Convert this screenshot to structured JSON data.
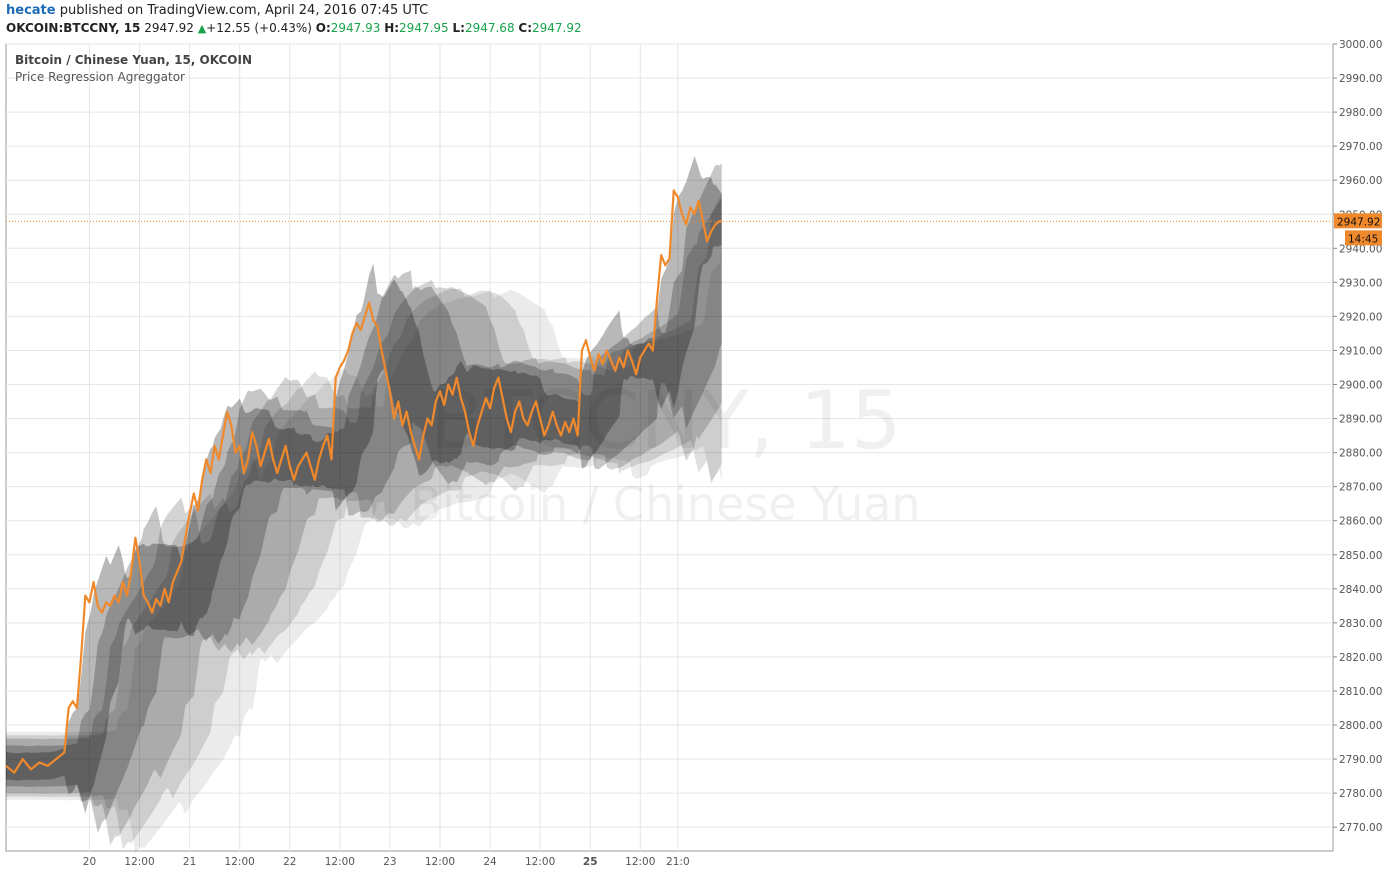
{
  "header": {
    "user": "hecate",
    "published_text": "published on TradingView.com, April 24, 2016 07:45 UTC",
    "symbol": "OKCOIN:BTCCNY, 15",
    "last": "2947.92",
    "change": "+12.55 (+0.43%)",
    "o_label": "O:",
    "o_value": "2947.93",
    "h_label": "H:",
    "h_value": "2947.95",
    "l_label": "L:",
    "l_value": "2947.68",
    "c_label": "C:",
    "c_value": "2947.92"
  },
  "overlay": {
    "title": "Bitcoin / Chinese Yuan, 15, OKCOIN",
    "indicator": "Price Regression Agreggator",
    "watermark_symbol": "BTCCNY, 15",
    "watermark_name": "Bitcoin / Chinese Yuan"
  },
  "colors": {
    "price": "#f0892c",
    "band": "#000000",
    "grid": "#e6e6e6",
    "axis": "#888888"
  },
  "chart_data": {
    "type": "line",
    "title": "Bitcoin / Chinese Yuan, 15, OKCOIN",
    "ylim": [
      2763,
      3000
    ],
    "y_ticks": [
      2770,
      2780,
      2790,
      2800,
      2810,
      2820,
      2830,
      2840,
      2850,
      2860,
      2870,
      2880,
      2890,
      2900,
      2910,
      2920,
      2930,
      2940,
      2950,
      2960,
      2970,
      2980,
      2990,
      3000
    ],
    "y_tick_labels": [
      "2770.00",
      "2780.00",
      "2790.00",
      "2800.00",
      "2810.00",
      "2820.00",
      "2830.00",
      "2840.00",
      "2850.00",
      "2860.00",
      "2870.00",
      "2880.00",
      "2890.00",
      "2900.00",
      "2910.00",
      "2920.00",
      "2930.00",
      "2940.00",
      "2950.00",
      "2960.00",
      "2970.00",
      "2980.00",
      "2990.00",
      "3000.00"
    ],
    "x_unit": "hours since Apr 20 00:00",
    "xlim": [
      -20,
      298
    ],
    "x_ticks": [
      0,
      12,
      24,
      36,
      48,
      60,
      72,
      84,
      96,
      108,
      120,
      132,
      141
    ],
    "x_tick_labels": [
      "20",
      "12:00",
      "21",
      "12:00",
      "22",
      "12:00",
      "23",
      "12:00",
      "24",
      "12:00",
      "25",
      "12:00",
      "21:0"
    ],
    "x_tick_bold": [
      false,
      false,
      false,
      false,
      false,
      false,
      false,
      false,
      false,
      false,
      true,
      false,
      false
    ],
    "last_price": 2947.92,
    "last_price_label": "2947.92",
    "countdown_label": "14:45",
    "series": [
      {
        "name": "BTCCNY",
        "points": [
          [
            -20,
            2788
          ],
          [
            -18,
            2786
          ],
          [
            -16,
            2790
          ],
          [
            -14,
            2787
          ],
          [
            -12,
            2789
          ],
          [
            -10,
            2788
          ],
          [
            -8,
            2790
          ],
          [
            -6,
            2792
          ],
          [
            -5,
            2805
          ],
          [
            -4,
            2807
          ],
          [
            -3,
            2805
          ],
          [
            -2,
            2820
          ],
          [
            -1,
            2838
          ],
          [
            0,
            2836
          ],
          [
            1,
            2842
          ],
          [
            2,
            2835
          ],
          [
            3,
            2833
          ],
          [
            4,
            2836
          ],
          [
            5,
            2835
          ],
          [
            6,
            2838
          ],
          [
            7,
            2836
          ],
          [
            8,
            2842
          ],
          [
            9,
            2838
          ],
          [
            10,
            2845
          ],
          [
            11,
            2855
          ],
          [
            12,
            2848
          ],
          [
            13,
            2838
          ],
          [
            14,
            2836
          ],
          [
            15,
            2833
          ],
          [
            16,
            2837
          ],
          [
            17,
            2835
          ],
          [
            18,
            2840
          ],
          [
            19,
            2836
          ],
          [
            20,
            2842
          ],
          [
            21,
            2845
          ],
          [
            22,
            2848
          ],
          [
            23,
            2855
          ],
          [
            24,
            2862
          ],
          [
            25,
            2868
          ],
          [
            26,
            2863
          ],
          [
            27,
            2872
          ],
          [
            28,
            2878
          ],
          [
            29,
            2874
          ],
          [
            30,
            2882
          ],
          [
            31,
            2878
          ],
          [
            32,
            2885
          ],
          [
            33,
            2892
          ],
          [
            34,
            2888
          ],
          [
            35,
            2880
          ],
          [
            36,
            2882
          ],
          [
            37,
            2874
          ],
          [
            38,
            2878
          ],
          [
            39,
            2886
          ],
          [
            40,
            2882
          ],
          [
            41,
            2876
          ],
          [
            42,
            2880
          ],
          [
            43,
            2884
          ],
          [
            44,
            2878
          ],
          [
            45,
            2874
          ],
          [
            46,
            2878
          ],
          [
            47,
            2882
          ],
          [
            48,
            2876
          ],
          [
            49,
            2872
          ],
          [
            50,
            2876
          ],
          [
            51,
            2878
          ],
          [
            52,
            2880
          ],
          [
            53,
            2876
          ],
          [
            54,
            2872
          ],
          [
            55,
            2878
          ],
          [
            56,
            2882
          ],
          [
            57,
            2885
          ],
          [
            58,
            2878
          ],
          [
            59,
            2902
          ],
          [
            60,
            2905
          ],
          [
            61,
            2907
          ],
          [
            62,
            2910
          ],
          [
            63,
            2915
          ],
          [
            64,
            2918
          ],
          [
            65,
            2916
          ],
          [
            66,
            2920
          ],
          [
            67,
            2924
          ],
          [
            68,
            2919
          ],
          [
            69,
            2917
          ],
          [
            70,
            2910
          ],
          [
            71,
            2904
          ],
          [
            72,
            2898
          ],
          [
            73,
            2890
          ],
          [
            74,
            2895
          ],
          [
            75,
            2888
          ],
          [
            76,
            2892
          ],
          [
            77,
            2886
          ],
          [
            78,
            2882
          ],
          [
            79,
            2878
          ],
          [
            80,
            2885
          ],
          [
            81,
            2890
          ],
          [
            82,
            2888
          ],
          [
            83,
            2895
          ],
          [
            84,
            2898
          ],
          [
            85,
            2894
          ],
          [
            86,
            2900
          ],
          [
            87,
            2897
          ],
          [
            88,
            2902
          ],
          [
            89,
            2896
          ],
          [
            90,
            2892
          ],
          [
            91,
            2886
          ],
          [
            92,
            2882
          ],
          [
            93,
            2888
          ],
          [
            94,
            2892
          ],
          [
            95,
            2896
          ],
          [
            96,
            2893
          ],
          [
            97,
            2899
          ],
          [
            98,
            2902
          ],
          [
            99,
            2896
          ],
          [
            100,
            2890
          ],
          [
            101,
            2886
          ],
          [
            102,
            2892
          ],
          [
            103,
            2895
          ],
          [
            104,
            2890
          ],
          [
            105,
            2888
          ],
          [
            106,
            2892
          ],
          [
            107,
            2895
          ],
          [
            108,
            2890
          ],
          [
            109,
            2885
          ],
          [
            110,
            2888
          ],
          [
            111,
            2892
          ],
          [
            112,
            2888
          ],
          [
            113,
            2885
          ],
          [
            114,
            2889
          ],
          [
            115,
            2886
          ],
          [
            116,
            2890
          ],
          [
            117,
            2885
          ],
          [
            118,
            2910
          ],
          [
            119,
            2913
          ],
          [
            120,
            2908
          ],
          [
            121,
            2904
          ],
          [
            122,
            2909
          ],
          [
            123,
            2906
          ],
          [
            124,
            2910
          ],
          [
            125,
            2907
          ],
          [
            126,
            2904
          ],
          [
            127,
            2908
          ],
          [
            128,
            2905
          ],
          [
            129,
            2910
          ],
          [
            130,
            2907
          ],
          [
            131,
            2903
          ],
          [
            132,
            2908
          ],
          [
            133,
            2910
          ],
          [
            134,
            2912
          ],
          [
            135,
            2910
          ],
          [
            136,
            2925
          ],
          [
            137,
            2938
          ],
          [
            138,
            2935
          ],
          [
            139,
            2937
          ],
          [
            140,
            2957
          ],
          [
            141,
            2955
          ],
          [
            142,
            2950
          ],
          [
            143,
            2947
          ],
          [
            144,
            2952
          ],
          [
            145,
            2950
          ],
          [
            146,
            2954
          ],
          [
            147,
            2948
          ],
          [
            148,
            2942
          ],
          [
            149,
            2945
          ],
          [
            150,
            2947
          ],
          [
            151,
            2948
          ],
          [
            151.5,
            2947.92
          ]
        ]
      }
    ]
  }
}
